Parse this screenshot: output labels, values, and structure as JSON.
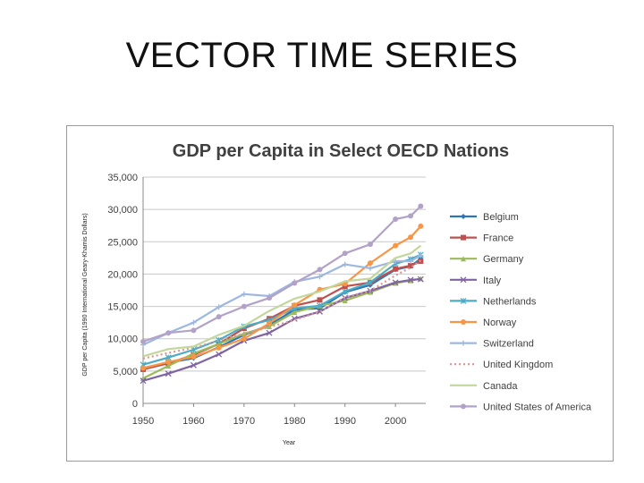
{
  "slide": {
    "title": "VECTOR TIME SERIES"
  },
  "chart_data": {
    "type": "line",
    "title": "GDP per Capita in Select OECD Nations",
    "xlabel": "Year",
    "ylabel": "GDP per Capita (1990 International Geary-Khamis Dollars)",
    "xlim": [
      1950,
      2006
    ],
    "ylim": [
      0,
      35000
    ],
    "xticks": [
      1950,
      1960,
      1970,
      1980,
      1990,
      2000
    ],
    "yticks": [
      0,
      5000,
      10000,
      15000,
      20000,
      25000,
      30000,
      35000
    ],
    "ytick_labels": [
      "0",
      "5,000",
      "10,000",
      "15,000",
      "20,000",
      "25,000",
      "30,000",
      "35,000"
    ],
    "grid": true,
    "legend": "right",
    "x": [
      1950,
      1955,
      1960,
      1965,
      1970,
      1975,
      1980,
      1985,
      1990,
      1995,
      2000,
      2003,
      2005
    ],
    "series": [
      {
        "name": "Belgium",
        "color": "#2e75b6",
        "marker": "diamond",
        "dash": "",
        "values": [
          5460,
          6300,
          7000,
          8700,
          10600,
          12100,
          14500,
          14700,
          17200,
          18300,
          20700,
          21200,
          22400
        ]
      },
      {
        "name": "France",
        "color": "#c0504d",
        "marker": "square",
        "dash": "",
        "values": [
          5270,
          6200,
          7500,
          9200,
          11600,
          13100,
          15100,
          16000,
          18100,
          18700,
          20800,
          21300,
          22000
        ]
      },
      {
        "name": "Germany",
        "color": "#9bbb59",
        "marker": "triangle",
        "dash": "",
        "values": [
          3880,
          5800,
          7700,
          9200,
          10800,
          11900,
          14100,
          15100,
          15900,
          17200,
          18600,
          19000,
          19300
        ]
      },
      {
        "name": "Italy",
        "color": "#8064a2",
        "marker": "x",
        "dash": "",
        "values": [
          3500,
          4600,
          5900,
          7600,
          9700,
          10900,
          13100,
          14200,
          16300,
          17400,
          18700,
          19100,
          19200
        ]
      },
      {
        "name": "Netherlands",
        "color": "#4bacc6",
        "marker": "star",
        "dash": "",
        "values": [
          5990,
          7100,
          8300,
          9800,
          11900,
          12900,
          14700,
          15100,
          17300,
          18700,
          21600,
          22300,
          23000
        ]
      },
      {
        "name": "Norway",
        "color": "#f79646",
        "marker": "circle",
        "dash": "",
        "values": [
          5460,
          6400,
          7200,
          8600,
          10000,
          12400,
          15200,
          17600,
          18500,
          21700,
          24400,
          25700,
          27400
        ]
      },
      {
        "name": "Switzerland",
        "color": "#9db7e0",
        "marker": "plus",
        "dash": "",
        "values": [
          9060,
          10900,
          12500,
          14900,
          16900,
          16600,
          18800,
          19600,
          21500,
          20900,
          22000,
          22000,
          22900
        ]
      },
      {
        "name": "United Kingdom",
        "color": "#d99694",
        "marker": "none",
        "dash": "2,3",
        "values": [
          6940,
          7800,
          8600,
          9700,
          10800,
          11800,
          12900,
          14200,
          16400,
          17400,
          19800,
          21000,
          22100
        ]
      },
      {
        "name": "Canada",
        "color": "#c3d69b",
        "marker": "none",
        "dash": "",
        "values": [
          7290,
          8400,
          8800,
          10600,
          12000,
          14300,
          16200,
          17300,
          18900,
          19300,
          22500,
          23200,
          24400
        ]
      },
      {
        "name": "United States of America",
        "color": "#b3a2c7",
        "marker": "circle",
        "dash": "",
        "values": [
          9570,
          10900,
          11300,
          13400,
          15000,
          16300,
          18600,
          20700,
          23200,
          24600,
          28500,
          29000,
          30500
        ]
      }
    ]
  }
}
